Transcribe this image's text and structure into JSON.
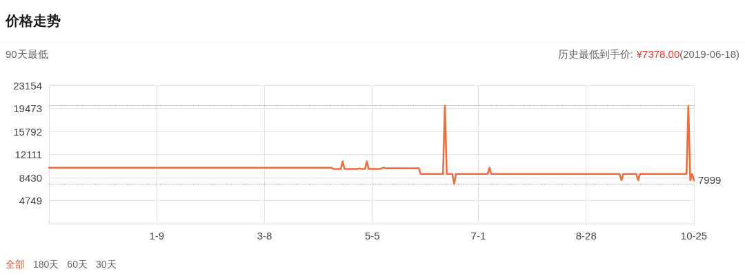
{
  "chart_data": {
    "type": "line",
    "title": "价格走势",
    "subtitle": "90天最低",
    "annotations": [
      "历史最低到手价:",
      "¥7378.00",
      "(2019-06-18)",
      "全部",
      "180天",
      "60天",
      "30天"
    ],
    "x": [
      "2018-11-12",
      "2019-04-13",
      "2019-04-14",
      "2019-04-18",
      "2019-04-19",
      "2019-04-20",
      "2019-04-27",
      "2019-04-28",
      "2019-04-29",
      "2019-05-01",
      "2019-05-02",
      "2019-05-03",
      "2019-05-09",
      "2019-05-10",
      "2019-05-11",
      "2019-05-12",
      "2019-05-30",
      "2019-05-31",
      "2019-06-12",
      "2019-06-13",
      "2019-06-14",
      "2019-06-17",
      "2019-06-18",
      "2019-06-19",
      "2019-07-06",
      "2019-07-07",
      "2019-07-08",
      "2019-09-15",
      "2019-09-16",
      "2019-09-17",
      "2019-09-24",
      "2019-09-25",
      "2019-09-26",
      "2019-10-21",
      "2019-10-22",
      "2019-10-23",
      "2019-10-24",
      "2019-10-25"
    ],
    "values": [
      10000,
      10000,
      9800,
      9800,
      11000,
      9800,
      9800,
      9900,
      9800,
      9800,
      11000,
      9800,
      9800,
      9900,
      10000,
      9900,
      9900,
      9000,
      9000,
      19900,
      9000,
      9000,
      7400,
      9000,
      9000,
      10000,
      9000,
      9000,
      8000,
      9000,
      9000,
      8000,
      9000,
      9000,
      19900,
      8000,
      9000,
      7999
    ],
    "value_labels": [
      null,
      null,
      null,
      null,
      null,
      null,
      null,
      null,
      null,
      null,
      null,
      null,
      null,
      null,
      null,
      null,
      null,
      null,
      null,
      null,
      null,
      null,
      null,
      null,
      null,
      null,
      null,
      null,
      null,
      null,
      null,
      null,
      null,
      null,
      null,
      null,
      null,
      "7999"
    ],
    "color": "#ef6d3b",
    "marker": "none",
    "line_style": "solid",
    "xlim": [
      "2018-11-12",
      "2019-10-25"
    ],
    "xticks": [
      {
        "value": "2019-01-09",
        "label": "1-9"
      },
      {
        "value": "2019-03-08",
        "label": "3-8"
      },
      {
        "value": "2019-05-05",
        "label": "5-5"
      },
      {
        "value": "2019-07-01",
        "label": "7-1"
      },
      {
        "value": "2019-08-28",
        "label": "8-28"
      },
      {
        "value": "2019-10-25",
        "label": "10-25"
      }
    ],
    "ylim": [
      1068,
      23154
    ],
    "yticks": [
      4749,
      8430,
      12111,
      15792,
      19473,
      23154
    ],
    "ref_lines": [
      {
        "axis": "y",
        "value": 19900,
        "color": "#9a9a9a",
        "line_style": "dotted"
      },
      {
        "axis": "y",
        "value": 7400,
        "color": "#9a9a9a",
        "line_style": "dotted"
      }
    ],
    "grid": true
  }
}
